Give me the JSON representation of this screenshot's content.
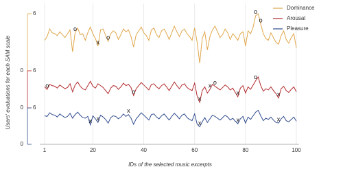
{
  "chart_data": {
    "type": "line",
    "x_label": "IDs of the selected music excerpts",
    "y_label": "Users' evaluations for each SAM scale",
    "x": [
      1,
      2,
      3,
      4,
      5,
      6,
      7,
      8,
      9,
      10,
      11,
      12,
      13,
      14,
      15,
      16,
      17,
      18,
      19,
      20,
      21,
      22,
      23,
      24,
      25,
      26,
      27,
      28,
      29,
      30,
      31,
      32,
      33,
      34,
      35,
      36,
      37,
      38,
      39,
      40,
      41,
      42,
      43,
      44,
      45,
      46,
      47,
      48,
      49,
      50,
      51,
      52,
      53,
      54,
      55,
      56,
      57,
      58,
      59,
      60,
      61,
      62,
      63,
      64,
      65,
      66,
      67,
      68,
      69,
      70,
      71,
      72,
      73,
      74,
      75,
      76,
      77,
      78,
      79,
      80,
      81,
      82,
      83,
      84,
      85,
      86,
      87,
      88,
      89,
      90,
      91,
      92,
      93,
      94,
      95,
      96,
      97,
      98,
      99,
      100
    ],
    "xlim": [
      1,
      100
    ],
    "xticks": [
      1,
      20,
      40,
      60,
      80,
      100
    ],
    "grid": true,
    "legend": "top-right",
    "series": [
      {
        "name": "Dominance",
        "color": "#e0a64a",
        "ylim": [
          0,
          6
        ],
        "yticks": [
          0,
          6
        ],
        "values": [
          3.2,
          3.6,
          4.4,
          4.0,
          3.9,
          3.7,
          4.1,
          3.8,
          3.5,
          3.9,
          4.3,
          2.0,
          4.0,
          4.5,
          3.8,
          3.9,
          3.2,
          4.0,
          4.6,
          3.9,
          3.4,
          2.6,
          4.3,
          4.4,
          3.7,
          3.1,
          3.9,
          4.2,
          4.0,
          3.3,
          3.8,
          4.4,
          4.1,
          4.3,
          3.6,
          2.5,
          3.8,
          4.2,
          4.6,
          4.0,
          3.7,
          3.2,
          4.3,
          4.5,
          3.8,
          3.5,
          4.2,
          4.4,
          3.9,
          3.3,
          4.0,
          4.7,
          4.1,
          3.6,
          4.2,
          4.4,
          3.9,
          3.6,
          3.2,
          4.5,
          3.0,
          0.8,
          3.4,
          4.1,
          2.2,
          3.6,
          4.3,
          4.7,
          4.1,
          3.5,
          3.8,
          4.4,
          4.0,
          3.3,
          3.9,
          3.6,
          3.2,
          3.9,
          4.1,
          2.6,
          4.2,
          3.9,
          4.6,
          5.8,
          6.0,
          4.9,
          3.9,
          3.4,
          3.2,
          4.0,
          3.5,
          3.0,
          2.8,
          3.7,
          4.2,
          3.3,
          2.9,
          3.5,
          3.9,
          2.4
        ],
        "markers": [
          {
            "x": 13,
            "label": "o"
          },
          {
            "x": 22,
            "label": "x"
          },
          {
            "x": 26,
            "label": "o"
          },
          {
            "x": 84,
            "label": "o"
          },
          {
            "x": 86,
            "label": "o"
          }
        ]
      },
      {
        "name": "Arousal",
        "color": "#b22a2e",
        "ylim": [
          0,
          6
        ],
        "yticks": [
          0,
          6
        ],
        "values": [
          3.4,
          3.0,
          3.8,
          3.6,
          3.5,
          3.2,
          3.7,
          3.4,
          3.1,
          3.3,
          3.9,
          2.6,
          3.7,
          4.2,
          3.5,
          3.1,
          2.9,
          3.6,
          4.3,
          3.5,
          3.2,
          3.9,
          3.6,
          3.3,
          2.8,
          2.3,
          3.2,
          3.6,
          3.5,
          3.0,
          3.4,
          4.0,
          3.6,
          3.8,
          3.3,
          2.0,
          3.1,
          3.6,
          4.1,
          3.7,
          3.3,
          2.9,
          3.8,
          3.9,
          3.4,
          3.1,
          3.6,
          3.9,
          3.4,
          2.8,
          3.5,
          4.2,
          3.6,
          3.1,
          3.7,
          3.9,
          3.3,
          3.0,
          2.8,
          4.0,
          1.9,
          0.9,
          2.8,
          3.4,
          2.4,
          3.0,
          3.8,
          3.5,
          3.2,
          2.9,
          3.3,
          3.7,
          3.4,
          2.9,
          3.2,
          2.5,
          1.8,
          3.2,
          3.6,
          2.4,
          3.4,
          3.0,
          3.7,
          4.4,
          5.0,
          3.6,
          2.7,
          3.1,
          2.9,
          3.4,
          2.8,
          2.3,
          1.6,
          3.1,
          3.5,
          2.8,
          2.5,
          3.0,
          3.4,
          2.6
        ],
        "markers": [
          {
            "x": 2,
            "label": "o"
          },
          {
            "x": 36,
            "label": "o"
          },
          {
            "x": 62,
            "label": "x"
          },
          {
            "x": 66,
            "label": "x"
          },
          {
            "x": 68,
            "label": "o"
          },
          {
            "x": 77,
            "label": "x"
          },
          {
            "x": 84,
            "label": "o"
          },
          {
            "x": 93,
            "label": "x"
          }
        ]
      },
      {
        "name": "Pleasure",
        "color": "#2f4b8f",
        "ylim": [
          0,
          6
        ],
        "yticks": [
          0,
          6
        ],
        "values": [
          4.7,
          4.6,
          5.2,
          4.9,
          4.8,
          4.5,
          5.0,
          4.7,
          4.4,
          4.6,
          5.1,
          4.3,
          4.9,
          5.3,
          4.8,
          4.4,
          4.3,
          4.6,
          3.2,
          4.7,
          4.2,
          3.6,
          4.8,
          4.5,
          4.1,
          3.5,
          4.4,
          4.7,
          4.6,
          4.2,
          4.5,
          5.0,
          4.6,
          4.9,
          4.3,
          3.3,
          4.2,
          4.7,
          5.2,
          4.8,
          4.4,
          4.0,
          4.9,
          5.0,
          4.5,
          4.2,
          4.7,
          5.0,
          4.5,
          4.0,
          4.6,
          5.1,
          4.7,
          4.2,
          4.8,
          5.0,
          4.4,
          4.1,
          3.9,
          5.0,
          3.3,
          2.9,
          3.7,
          4.4,
          3.6,
          4.2,
          4.8,
          4.6,
          4.3,
          4.0,
          4.4,
          4.8,
          4.5,
          4.0,
          4.3,
          3.8,
          3.4,
          4.2,
          4.6,
          3.5,
          4.5,
          4.1,
          4.7,
          5.3,
          5.6,
          4.7,
          3.9,
          4.3,
          4.1,
          4.5,
          4.0,
          3.6,
          3.5,
          4.2,
          4.6,
          3.9,
          3.7,
          4.1,
          4.5,
          3.8
        ],
        "markers": [
          {
            "x": 19,
            "label": "x"
          },
          {
            "x": 22,
            "label": "x"
          },
          {
            "x": 34,
            "label": "x"
          },
          {
            "x": 62,
            "label": "x"
          },
          {
            "x": 77,
            "label": "x"
          },
          {
            "x": 93,
            "label": "x"
          }
        ]
      }
    ]
  }
}
